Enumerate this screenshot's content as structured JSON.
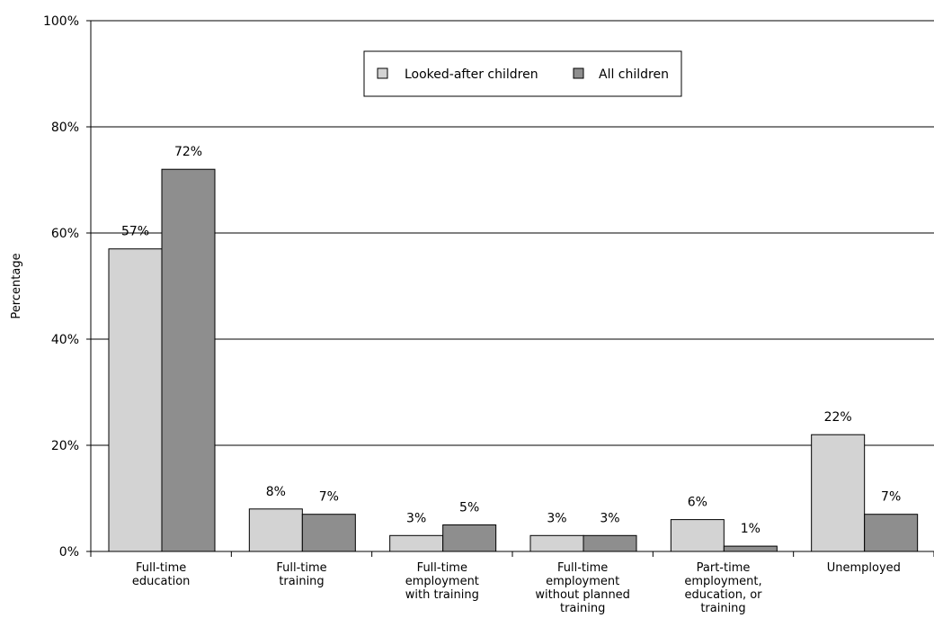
{
  "chart_data": {
    "type": "bar",
    "categories": [
      [
        "Full-time",
        "education"
      ],
      [
        "Full-time",
        "training"
      ],
      [
        "Full-time",
        "employment",
        "with training"
      ],
      [
        "Full-time",
        "employment",
        "without planned",
        "training"
      ],
      [
        "Part-time",
        "employment,",
        "education, or",
        "training"
      ],
      [
        "Unemployed"
      ]
    ],
    "series": [
      {
        "name": "Looked-after children",
        "values": [
          57,
          8,
          3,
          3,
          6,
          22
        ],
        "labels": [
          "57%",
          "8%",
          "3%",
          "3%",
          "6%",
          "22%"
        ],
        "color": "#d3d3d3"
      },
      {
        "name": "All children",
        "values": [
          72,
          7,
          5,
          3,
          1,
          7
        ],
        "labels": [
          "72%",
          "7%",
          "5%",
          "3%",
          "1%",
          "7%"
        ],
        "color": "#8e8e8e"
      }
    ],
    "ylabel": "Percentage",
    "xlabel": "",
    "ylim": [
      0,
      100
    ],
    "yticks": [
      0,
      20,
      40,
      60,
      80,
      100
    ],
    "ytick_labels": [
      "0%",
      "20%",
      "40%",
      "60%",
      "80%",
      "100%"
    ],
    "grid": true,
    "legend_position": "top-center"
  }
}
